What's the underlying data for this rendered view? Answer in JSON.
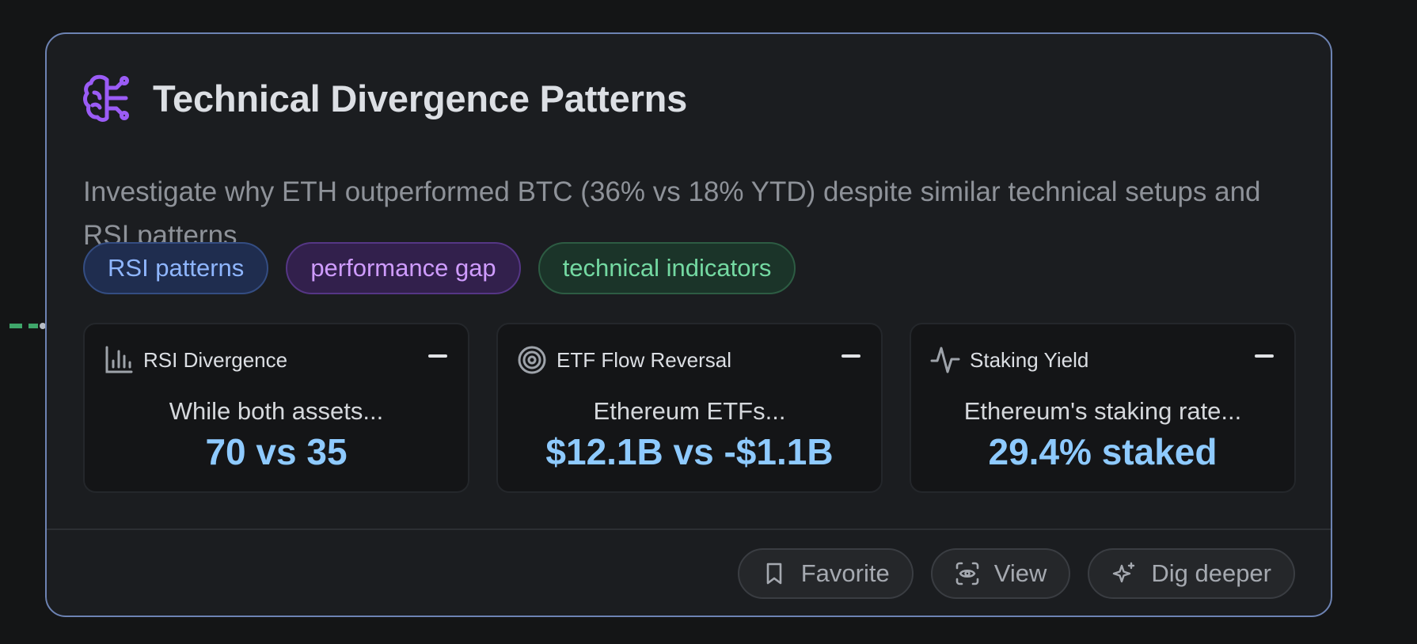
{
  "card": {
    "title": "Technical Divergence Patterns",
    "description": "Investigate why ETH outperformed BTC (36% vs 18% YTD) despite similar technical setups and RSI patterns",
    "icon": "brain-circuit-icon",
    "accent_color": "#9b5cf6"
  },
  "tags": [
    {
      "label": "RSI patterns",
      "color": "#8fb6ff"
    },
    {
      "label": "performance gap",
      "color": "#cf9cff"
    },
    {
      "label": "technical indicators",
      "color": "#74d9a2"
    }
  ],
  "metrics": [
    {
      "icon": "bar-chart-icon",
      "label": "RSI Divergence",
      "text": "While both assets...",
      "value": "70 vs 35"
    },
    {
      "icon": "target-icon",
      "label": "ETF Flow Reversal",
      "text": "Ethereum ETFs...",
      "value": "$12.1B vs -$1.1B"
    },
    {
      "icon": "activity-icon",
      "label": "Staking Yield",
      "text": "Ethereum's staking rate...",
      "value": "29.4% staked"
    }
  ],
  "actions": {
    "favorite_label": "Favorite",
    "view_label": "View",
    "dig_deeper_label": "Dig deeper"
  }
}
